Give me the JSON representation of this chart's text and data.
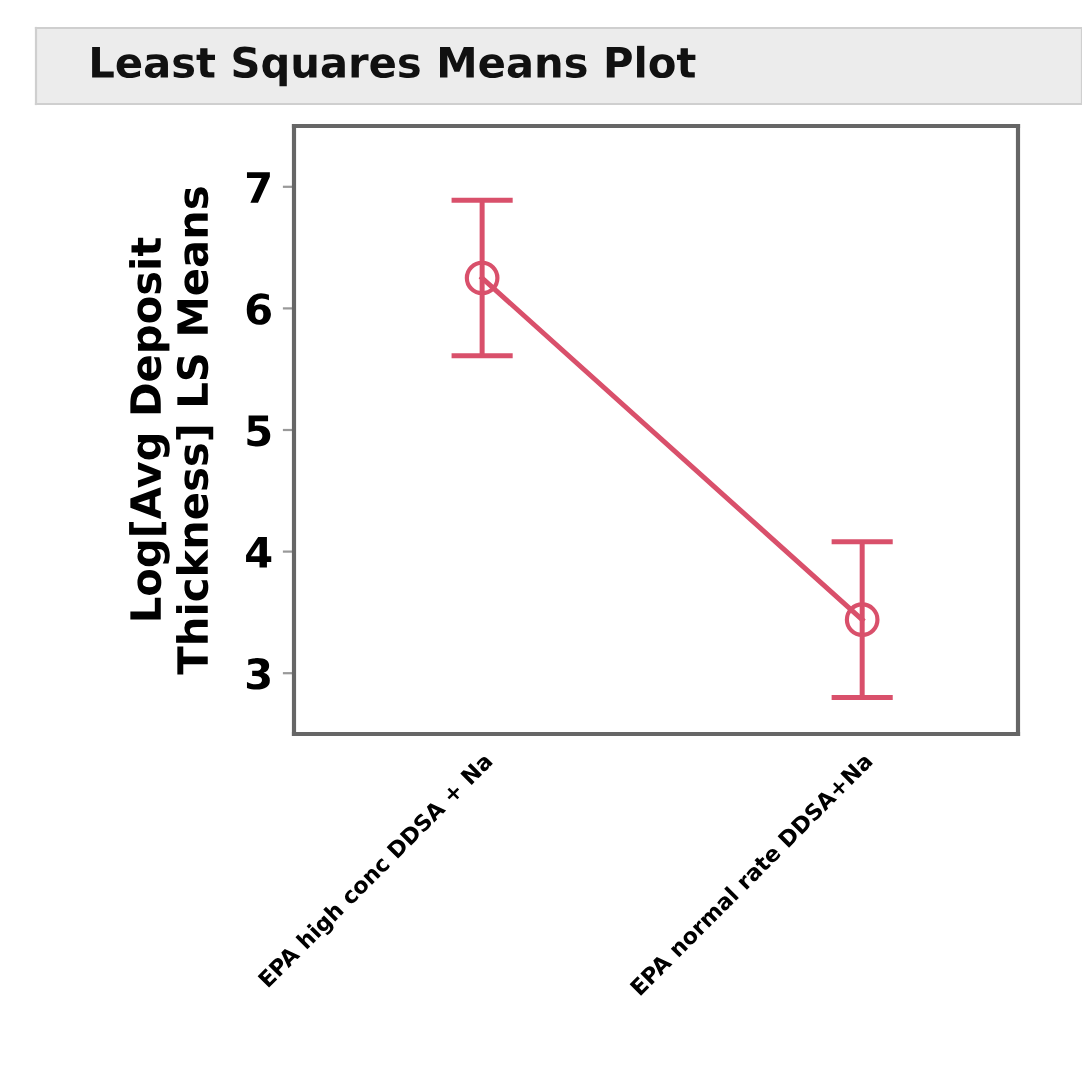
{
  "chart_data": {
    "type": "line",
    "title": "Least Squares Means Plot",
    "ylabel": "Log[Avg Deposit\nThickness] LS Means",
    "categories": [
      "EPA high conc DDSA + Na",
      "EPA normal rate DDSA+Na"
    ],
    "series": [
      {
        "color": "#d9506b",
        "values": [
          6.25,
          3.44
        ],
        "errors": [
          0.64,
          0.64
        ]
      }
    ],
    "ylim": [
      2.5,
      7.5
    ],
    "yticks": [
      3,
      4,
      5,
      6,
      7
    ],
    "marker": "circle",
    "line_style": "solid"
  }
}
